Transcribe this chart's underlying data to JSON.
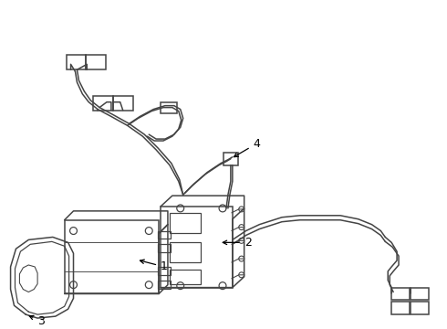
{
  "background_color": "#ffffff",
  "line_color": "#444444",
  "line_width": 1.1,
  "label_color": "#000000",
  "fig_width": 4.9,
  "fig_height": 3.6,
  "dpi": 100
}
